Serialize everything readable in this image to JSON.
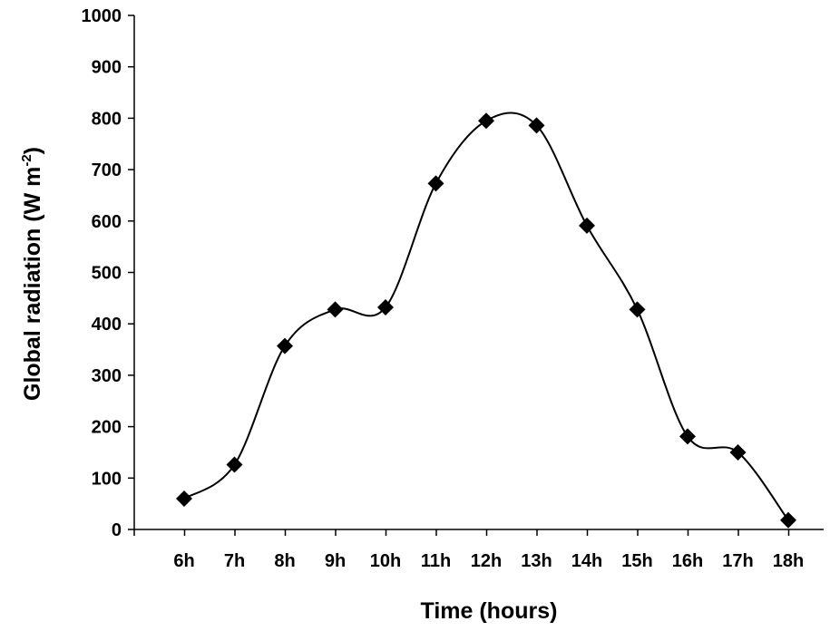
{
  "chart_data": {
    "type": "line",
    "title": "",
    "xlabel": "Time (hours)",
    "ylabel": {
      "main": "Global radiation  (W m",
      "sup": "-2",
      "close": ")"
    },
    "categories": [
      "6h",
      "7h",
      "8h",
      "9h",
      "10h",
      "11h",
      "12h",
      "13h",
      "14h",
      "15h",
      "16h",
      "17h",
      "18h"
    ],
    "values": [
      60,
      126,
      357,
      428,
      432,
      673,
      795,
      786,
      591,
      428,
      181,
      150,
      18
    ],
    "yticks": [
      "0",
      "100",
      "200",
      "300",
      "400",
      "500",
      "600",
      "700",
      "800",
      "900",
      "1000"
    ],
    "ylim": [
      0,
      1000
    ],
    "grid": false,
    "legend": "none",
    "line_color": "#000000",
    "marker": "diamond",
    "smooth": true
  }
}
